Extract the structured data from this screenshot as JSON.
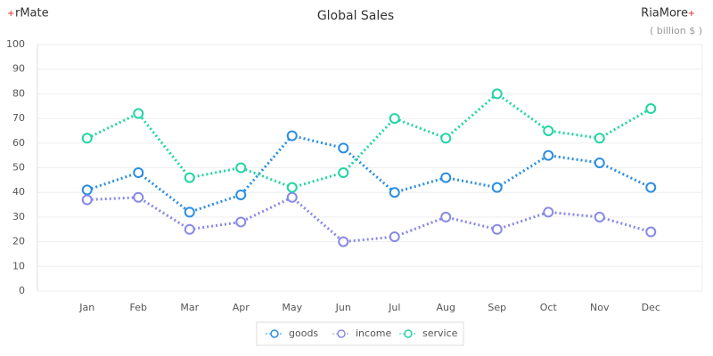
{
  "chart_data": {
    "type": "line",
    "title": "Global Sales",
    "brand_left": "rMate",
    "brand_right": "RiaMore",
    "unit_label": "( billion $ )",
    "categories": [
      "Jan",
      "Feb",
      "Mar",
      "Apr",
      "May",
      "Jun",
      "Jul",
      "Aug",
      "Sep",
      "Oct",
      "Nov",
      "Dec"
    ],
    "series": [
      {
        "name": "goods",
        "color": "#2b8ee0",
        "values": [
          41,
          48,
          32,
          39,
          63,
          58,
          40,
          46,
          42,
          55,
          52,
          42
        ]
      },
      {
        "name": "income",
        "color": "#8888e8",
        "values": [
          37,
          38,
          25,
          28,
          38,
          20,
          22,
          30,
          25,
          32,
          30,
          24
        ]
      },
      {
        "name": "service",
        "color": "#22d4a4",
        "values": [
          62,
          72,
          46,
          50,
          42,
          48,
          70,
          62,
          80,
          65,
          62,
          74
        ]
      }
    ],
    "ylim": [
      0,
      100
    ],
    "yticks": [
      0,
      10,
      20,
      30,
      40,
      50,
      60,
      70,
      80,
      90,
      100
    ],
    "grid": true
  }
}
